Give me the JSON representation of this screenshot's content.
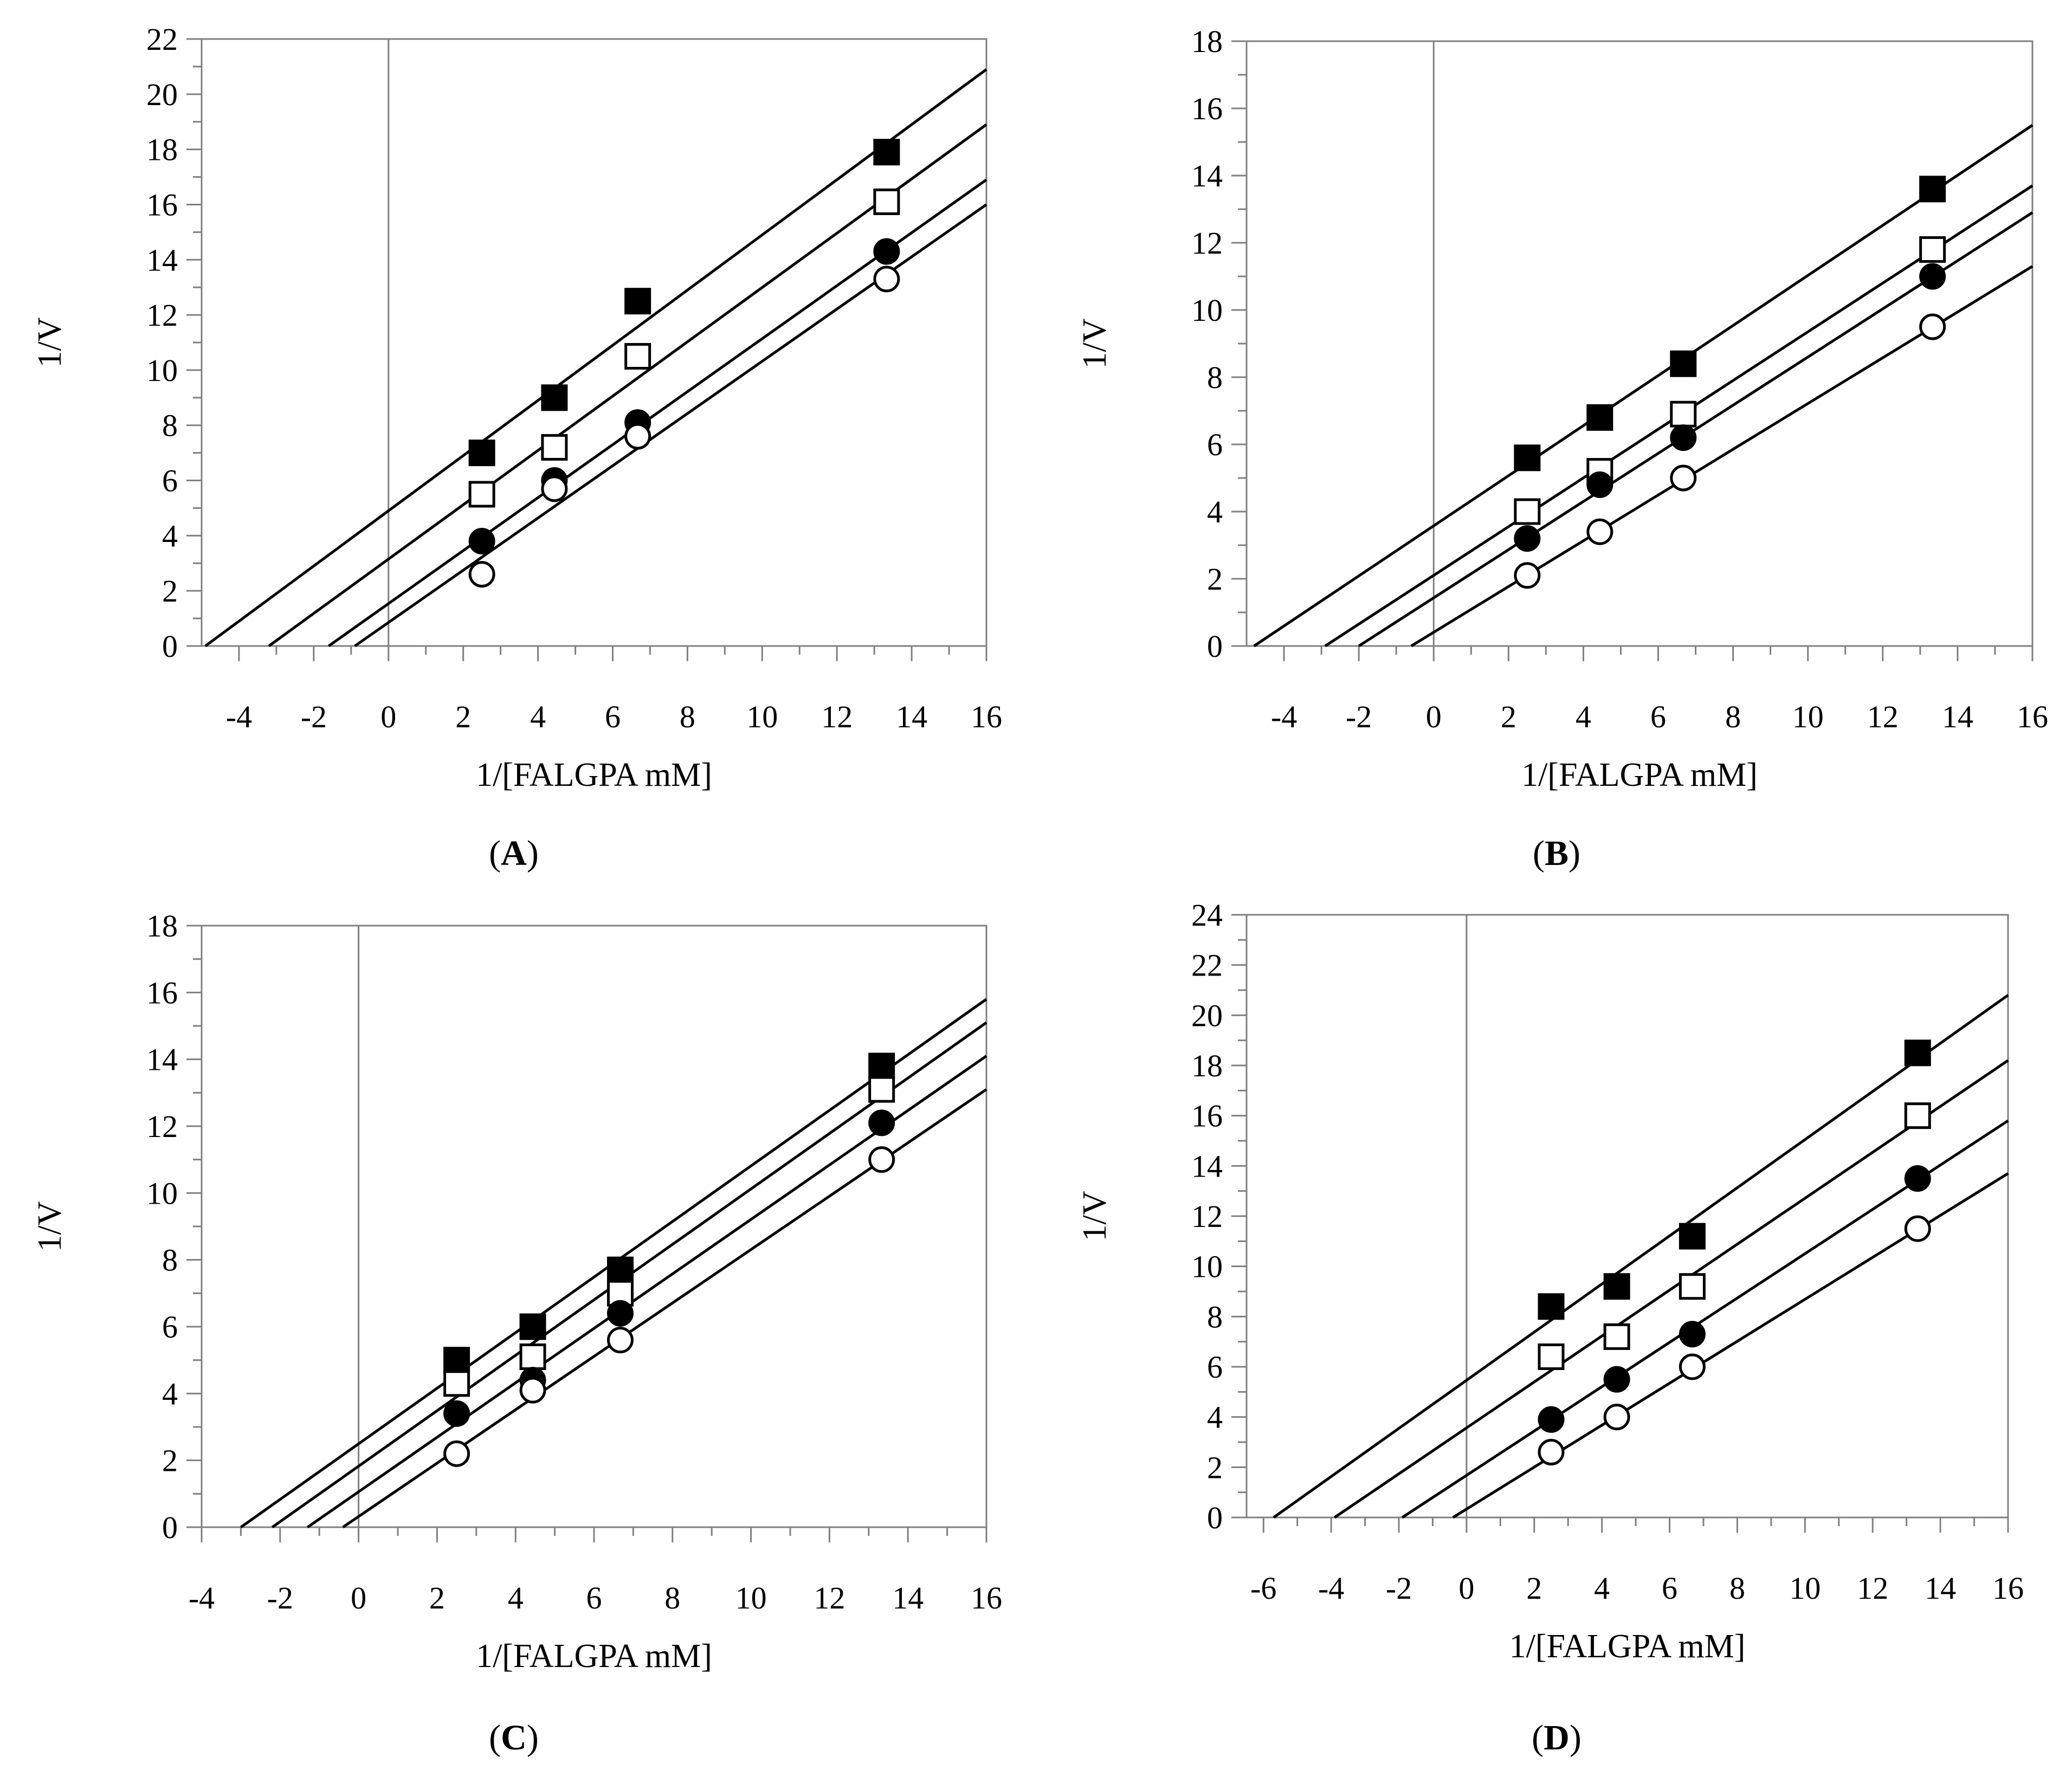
{
  "chart_data": [
    {
      "type": "scatter",
      "panel": "A",
      "xlabel": "1/[FALGPA mM]",
      "ylabel": "1/V",
      "xlim": [
        -5,
        16
      ],
      "ylim": [
        0,
        22
      ],
      "xticks": [
        "-4",
        "-2",
        "0",
        "2",
        "4",
        "6",
        "8",
        "10",
        "12",
        "14",
        "16"
      ],
      "yticks": [
        "0",
        "2",
        "4",
        "6",
        "8",
        "10",
        "12",
        "14",
        "16",
        "18",
        "20",
        "22"
      ],
      "x_tick_values": [
        -4,
        -2,
        0,
        2,
        4,
        6,
        8,
        10,
        12,
        14,
        16
      ],
      "y_tick_values": [
        0,
        2,
        4,
        6,
        8,
        10,
        12,
        14,
        16,
        18,
        20,
        22
      ],
      "series": [
        {
          "marker": "filled-square",
          "x": [
            2.5,
            4.44,
            6.67,
            13.33
          ],
          "y": [
            7.0,
            9.0,
            12.5,
            17.9
          ],
          "line": [
            [
              -4.9,
              0
            ],
            [
              16,
              20.9
            ]
          ]
        },
        {
          "marker": "open-square",
          "x": [
            2.5,
            4.44,
            6.67,
            13.33
          ],
          "y": [
            5.5,
            7.2,
            10.5,
            16.1
          ],
          "line": [
            [
              -3.2,
              0
            ],
            [
              16,
              18.9
            ]
          ]
        },
        {
          "marker": "filled-circle",
          "x": [
            2.5,
            4.44,
            6.67,
            13.33
          ],
          "y": [
            3.8,
            6.0,
            8.1,
            14.3
          ],
          "line": [
            [
              -1.6,
              0
            ],
            [
              16,
              16.9
            ]
          ]
        },
        {
          "marker": "open-circle",
          "x": [
            2.5,
            4.44,
            6.67,
            13.33
          ],
          "y": [
            2.6,
            5.7,
            7.6,
            13.3
          ],
          "line": [
            [
              -0.9,
              0
            ],
            [
              16,
              16.0
            ]
          ]
        }
      ]
    },
    {
      "type": "scatter",
      "panel": "B",
      "xlabel": "1/[FALGPA mM]",
      "ylabel": "1/V",
      "xlim": [
        -5,
        16
      ],
      "ylim": [
        0,
        18
      ],
      "xticks": [
        "-4",
        "-2",
        "0",
        "2",
        "4",
        "6",
        "8",
        "10",
        "12",
        "14",
        "16"
      ],
      "yticks": [
        "0",
        "2",
        "4",
        "6",
        "8",
        "10",
        "12",
        "14",
        "16",
        "18"
      ],
      "x_tick_values": [
        -4,
        -2,
        0,
        2,
        4,
        6,
        8,
        10,
        12,
        14,
        16
      ],
      "y_tick_values": [
        0,
        2,
        4,
        6,
        8,
        10,
        12,
        14,
        16,
        18
      ],
      "series": [
        {
          "marker": "filled-square",
          "x": [
            2.5,
            4.44,
            6.67,
            13.33
          ],
          "y": [
            5.6,
            6.8,
            8.4,
            13.6
          ],
          "line": [
            [
              -4.8,
              0
            ],
            [
              16,
              15.5
            ]
          ]
        },
        {
          "marker": "open-square",
          "x": [
            2.5,
            4.44,
            6.67,
            13.33
          ],
          "y": [
            4.0,
            5.2,
            6.9,
            11.8
          ],
          "line": [
            [
              -2.9,
              0
            ],
            [
              16,
              13.7
            ]
          ]
        },
        {
          "marker": "filled-circle",
          "x": [
            2.5,
            4.44,
            6.67,
            13.33
          ],
          "y": [
            3.2,
            4.8,
            6.2,
            11.0
          ],
          "line": [
            [
              -2.0,
              0
            ],
            [
              16,
              12.9
            ]
          ]
        },
        {
          "marker": "open-circle",
          "x": [
            2.5,
            4.44,
            6.67,
            13.33
          ],
          "y": [
            2.1,
            3.4,
            5.0,
            9.5
          ],
          "line": [
            [
              -0.6,
              0
            ],
            [
              16,
              11.3
            ]
          ]
        }
      ]
    },
    {
      "type": "scatter",
      "panel": "C",
      "xlabel": "1/[FALGPA mM]",
      "ylabel": "1/V",
      "xlim": [
        -4,
        16
      ],
      "ylim": [
        0,
        18
      ],
      "xticks": [
        "-4",
        "-2",
        "0",
        "2",
        "4",
        "6",
        "8",
        "10",
        "12",
        "14",
        "16"
      ],
      "yticks": [
        "0",
        "2",
        "4",
        "6",
        "8",
        "10",
        "12",
        "14",
        "16",
        "18"
      ],
      "x_tick_values": [
        -4,
        -2,
        0,
        2,
        4,
        6,
        8,
        10,
        12,
        14,
        16
      ],
      "y_tick_values": [
        0,
        2,
        4,
        6,
        8,
        10,
        12,
        14,
        16,
        18
      ],
      "series": [
        {
          "marker": "filled-square",
          "x": [
            2.5,
            4.44,
            6.67,
            13.33
          ],
          "y": [
            5.0,
            6.0,
            7.7,
            13.8
          ],
          "line": [
            [
              -3.0,
              0
            ],
            [
              16,
              15.8
            ]
          ]
        },
        {
          "marker": "open-square",
          "x": [
            2.5,
            4.44,
            6.67,
            13.33
          ],
          "y": [
            4.3,
            5.1,
            7.0,
            13.1
          ],
          "line": [
            [
              -2.2,
              0
            ],
            [
              16,
              15.1
            ]
          ]
        },
        {
          "marker": "filled-circle",
          "x": [
            2.5,
            4.44,
            6.67,
            13.33
          ],
          "y": [
            3.4,
            4.4,
            6.4,
            12.1
          ],
          "line": [
            [
              -1.3,
              0
            ],
            [
              16,
              14.1
            ]
          ]
        },
        {
          "marker": "open-circle",
          "x": [
            2.5,
            4.44,
            6.67,
            13.33
          ],
          "y": [
            2.2,
            4.1,
            5.6,
            11.0
          ],
          "line": [
            [
              -0.4,
              0
            ],
            [
              16,
              13.1
            ]
          ]
        }
      ]
    },
    {
      "type": "scatter",
      "panel": "D",
      "xlabel": "1/[FALGPA mM]",
      "ylabel": "1/V",
      "xlim": [
        -6.5,
        16
      ],
      "ylim": [
        0,
        24
      ],
      "xticks": [
        "-6",
        "-4",
        "-2",
        "0",
        "2",
        "4",
        "6",
        "8",
        "10",
        "12",
        "14",
        "16"
      ],
      "yticks": [
        "0",
        "2",
        "4",
        "6",
        "8",
        "10",
        "12",
        "14",
        "16",
        "18",
        "20",
        "22",
        "24"
      ],
      "x_tick_values": [
        -6,
        -4,
        -2,
        0,
        2,
        4,
        6,
        8,
        10,
        12,
        14,
        16
      ],
      "y_tick_values": [
        0,
        2,
        4,
        6,
        8,
        10,
        12,
        14,
        16,
        18,
        20,
        22,
        24
      ],
      "series": [
        {
          "marker": "filled-square",
          "x": [
            2.5,
            4.44,
            6.67,
            13.33
          ],
          "y": [
            8.4,
            9.2,
            11.2,
            18.5
          ],
          "line": [
            [
              -5.7,
              0
            ],
            [
              16,
              20.8
            ]
          ]
        },
        {
          "marker": "open-square",
          "x": [
            2.5,
            4.44,
            6.67,
            13.33
          ],
          "y": [
            6.4,
            7.2,
            9.2,
            16.0
          ],
          "line": [
            [
              -3.9,
              0
            ],
            [
              16,
              18.2
            ]
          ]
        },
        {
          "marker": "filled-circle",
          "x": [
            2.5,
            4.44,
            6.67,
            13.33
          ],
          "y": [
            3.9,
            5.5,
            7.3,
            13.5
          ],
          "line": [
            [
              -1.9,
              0
            ],
            [
              16,
              15.8
            ]
          ]
        },
        {
          "marker": "open-circle",
          "x": [
            2.5,
            4.44,
            6.67,
            13.33
          ],
          "y": [
            2.6,
            4.0,
            6.0,
            11.5
          ],
          "line": [
            [
              -0.4,
              0
            ],
            [
              16,
              13.7
            ]
          ]
        }
      ]
    }
  ],
  "panel_labels": {
    "A": {
      "open": "(",
      "letter": "A",
      "close": ")"
    },
    "B": {
      "open": "(",
      "letter": "B",
      "close": ")"
    },
    "C": {
      "open": "(",
      "letter": "C",
      "close": ")"
    },
    "D": {
      "open": "(",
      "letter": "D",
      "close": ")"
    }
  }
}
